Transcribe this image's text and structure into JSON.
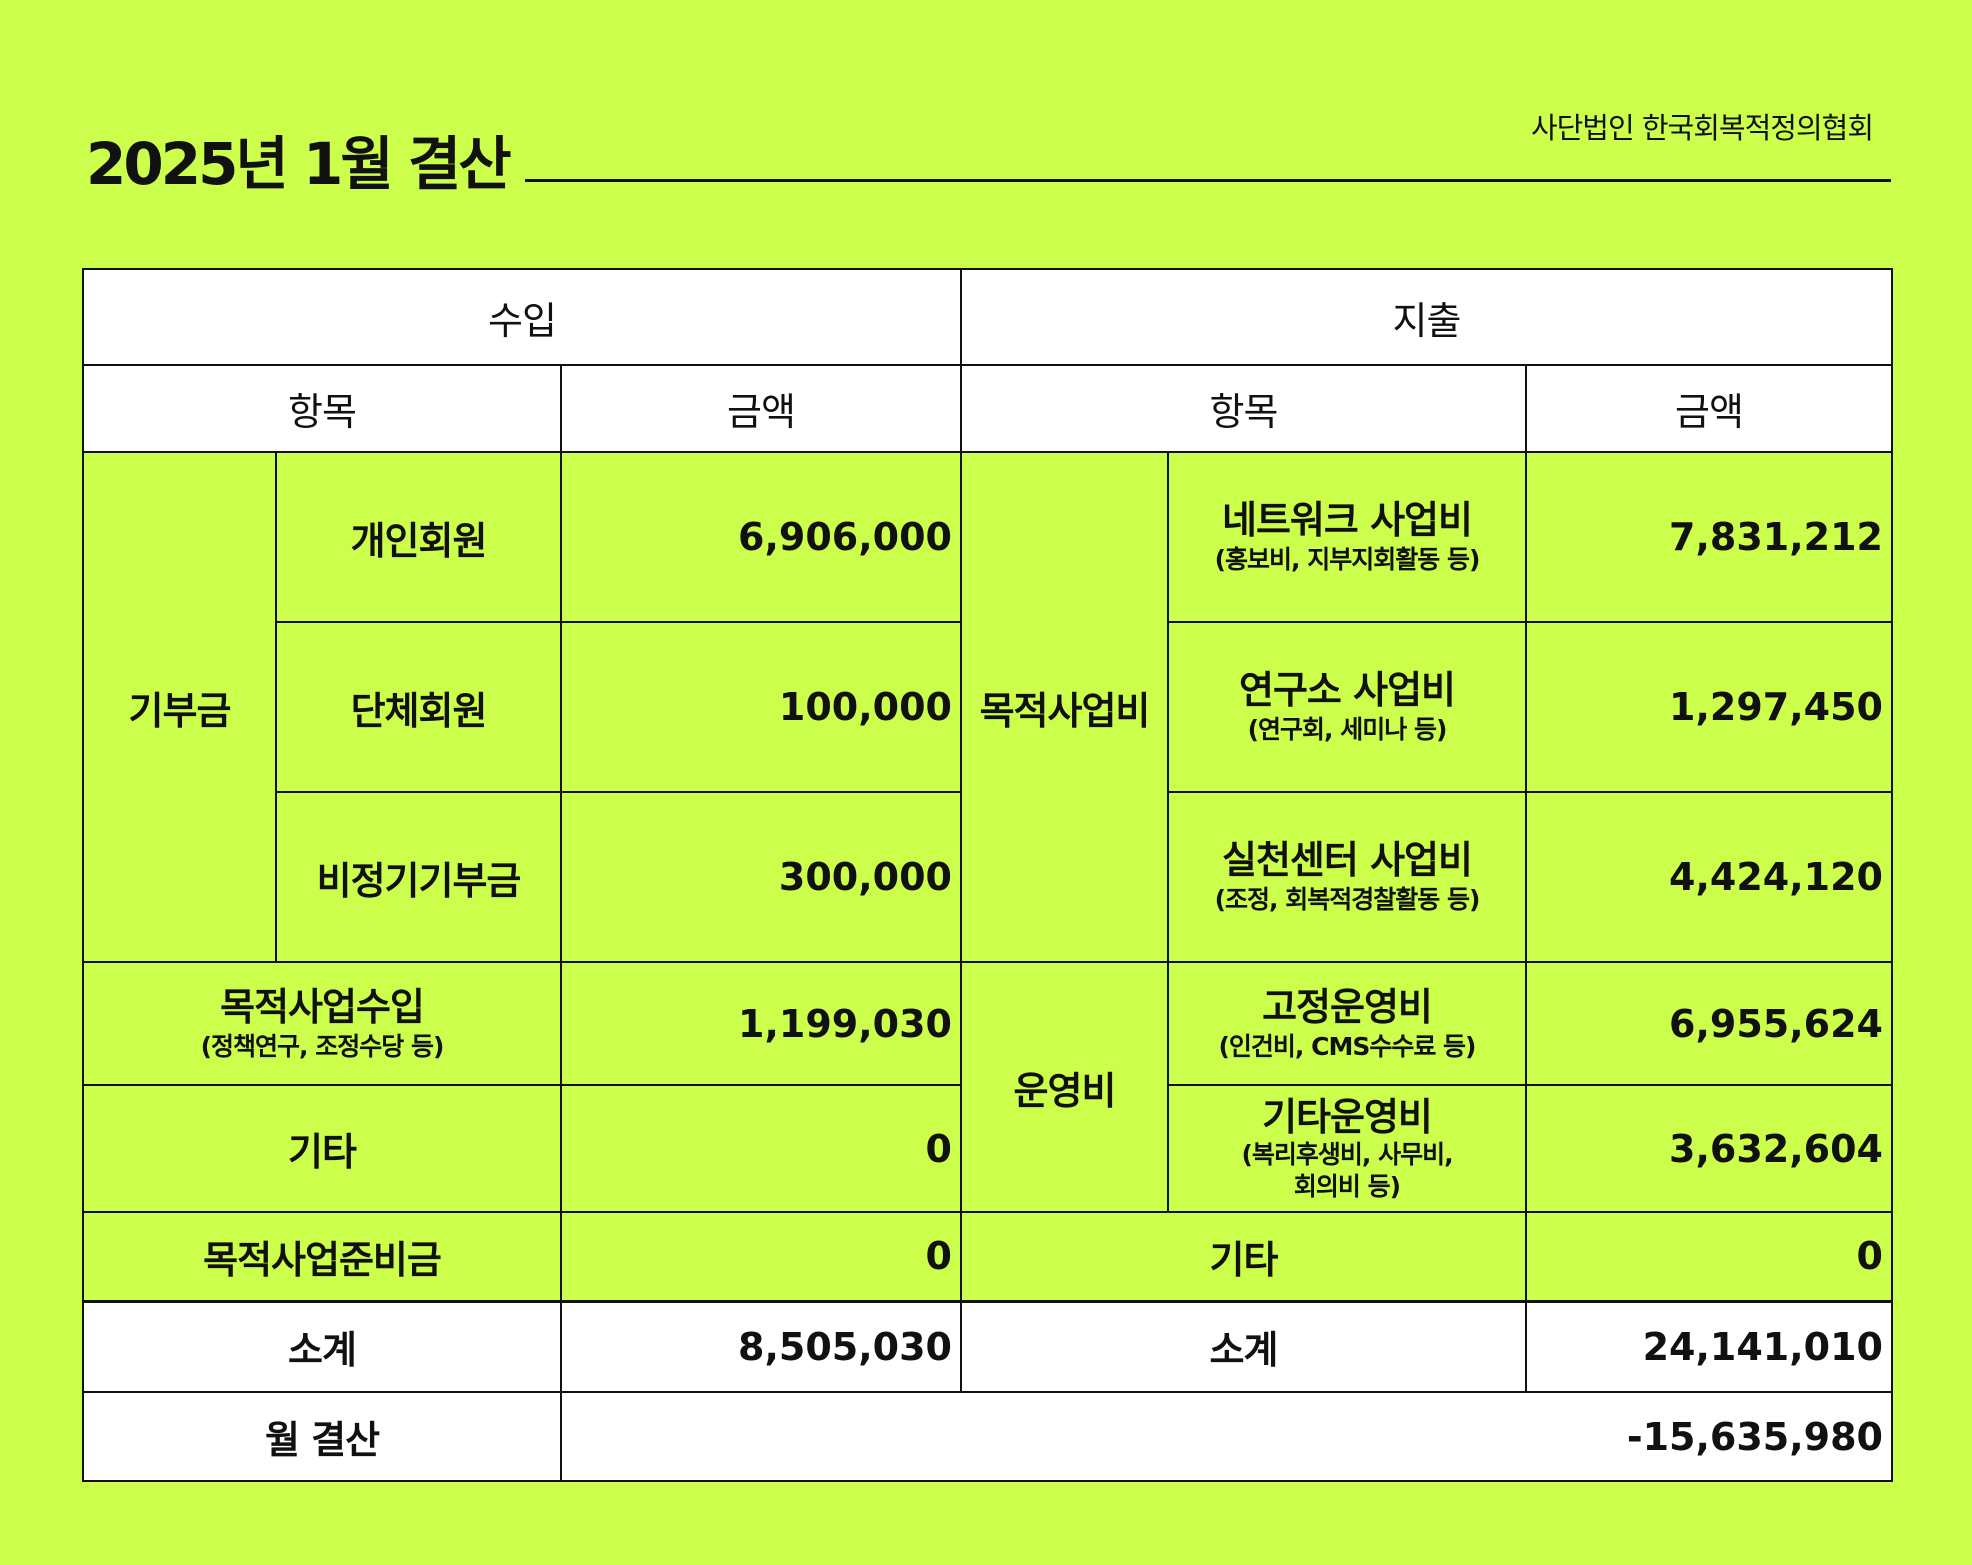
{
  "header": {
    "title": "2025년 1월 결산",
    "org": "사단법인 한국회복적정의협회"
  },
  "table": {
    "income": "수입",
    "expense": "지출",
    "col_item": "항목",
    "col_amount": "금액",
    "income_rows": {
      "donation_group": "기부금",
      "individual": {
        "label": "개인회원",
        "amount": "6,906,000"
      },
      "group": {
        "label": "단체회원",
        "amount": "100,000"
      },
      "irregular": {
        "label": "비정기기부금",
        "amount": "300,000"
      },
      "project_income": {
        "label": "목적사업수입",
        "sub": "(정책연구, 조정수당 등)",
        "amount": "1,199,030"
      },
      "other": {
        "label": "기타",
        "amount": "0"
      },
      "reserve": {
        "label": "목적사업준비금",
        "amount": "0"
      },
      "subtotal": {
        "label": "소계",
        "amount": "8,505,030"
      }
    },
    "expense_rows": {
      "project_group": "목적사업비",
      "network": {
        "label": "네트워크 사업비",
        "sub": "(홍보비, 지부지회활동 등)",
        "amount": "7,831,212"
      },
      "research": {
        "label": "연구소 사업비",
        "sub": "(연구회, 세미나 등)",
        "amount": "1,297,450"
      },
      "practice": {
        "label": "실천센터 사업비",
        "sub": "(조정, 회복적경찰활동 등)",
        "amount": "4,424,120"
      },
      "operation_group": "운영비",
      "fixed": {
        "label": "고정운영비",
        "sub": "(인건비, CMS수수료 등)",
        "amount": "6,955,624"
      },
      "other_operation": {
        "label": "기타운영비",
        "sub1": "(복리후생비, 사무비,",
        "sub2": "회의비 등)",
        "amount": "3,632,604"
      },
      "other": {
        "label": "기타",
        "amount": "0"
      },
      "subtotal": {
        "label": "소계",
        "amount": "24,141,010"
      }
    },
    "monthly": {
      "label": "월 결산",
      "amount": "-15,635,980"
    }
  }
}
